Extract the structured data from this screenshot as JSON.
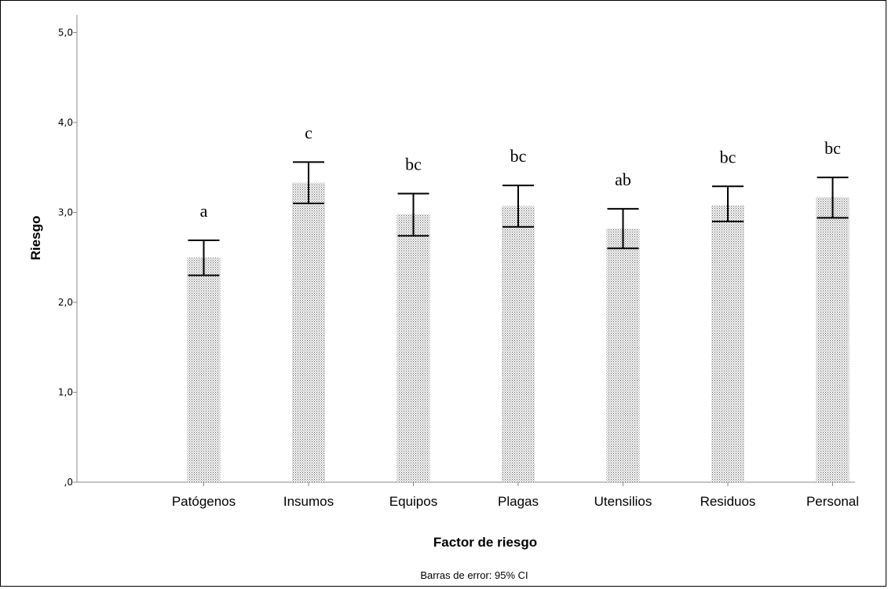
{
  "chart_data": {
    "type": "bar",
    "title": "",
    "xlabel": "Factor de riesgo",
    "ylabel": "Riesgo",
    "footnote": "Barras de error: 95% CI",
    "ylim": [
      0,
      5
    ],
    "yticks": [
      0,
      1,
      2,
      3,
      4,
      5
    ],
    "ytick_labels": [
      ",0",
      "1,0",
      "2,0",
      "3,0",
      "4,0",
      "5,0"
    ],
    "grid": false,
    "bar_fill": "#c8c8c8",
    "error_bar_color": "#000000",
    "categories": [
      "Patógenos",
      "Insumos",
      "Equipos",
      "Plagas",
      "Utensilios",
      "Residuos",
      "Personal"
    ],
    "values": [
      2.5,
      3.33,
      2.98,
      3.07,
      2.82,
      3.08,
      3.17
    ],
    "ci_lower": [
      2.3,
      3.1,
      2.74,
      2.84,
      2.6,
      2.9,
      2.94
    ],
    "ci_upper": [
      2.69,
      3.56,
      3.21,
      3.3,
      3.04,
      3.29,
      3.39
    ],
    "group_letters": [
      "a",
      "c",
      "bc",
      "bc",
      "ab",
      "bc",
      "bc"
    ]
  }
}
